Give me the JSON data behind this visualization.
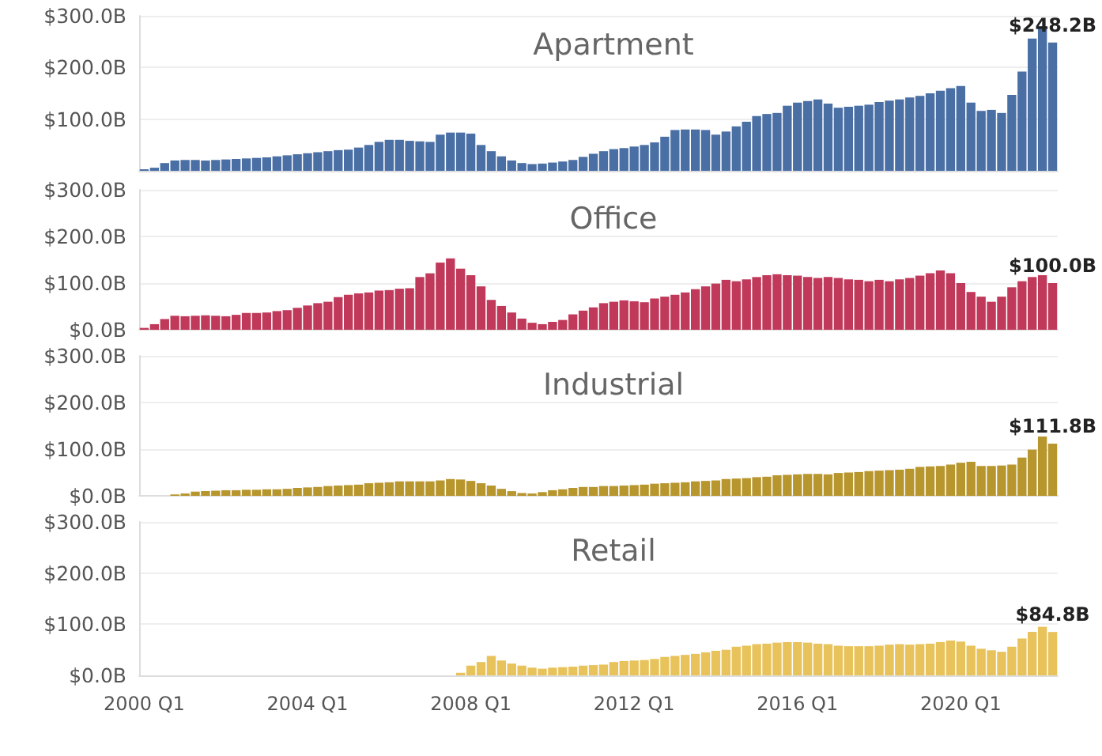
{
  "chart_data": [
    {
      "type": "bar",
      "title": "Apartment",
      "color": "#4a6fa5",
      "grid": "y",
      "tick_labels": "y",
      "values": [
        3,
        6,
        15,
        20,
        21,
        21,
        20,
        21,
        22,
        23,
        24,
        25,
        26,
        28,
        30,
        32,
        34,
        36,
        38,
        40,
        41,
        45,
        50,
        56,
        60,
        60,
        58,
        57,
        56,
        70,
        74,
        74,
        72,
        50,
        38,
        28,
        20,
        15,
        13,
        14,
        16,
        18,
        21,
        27,
        33,
        38,
        42,
        44,
        47,
        50,
        55,
        66,
        79,
        80,
        80,
        79,
        70,
        76,
        86,
        95,
        106,
        110,
        112,
        126,
        132,
        135,
        138,
        130,
        122,
        124,
        126,
        128,
        133,
        136,
        138,
        142,
        145,
        150,
        155,
        160,
        164,
        132,
        116,
        118,
        112,
        147,
        192,
        256,
        280,
        248.2
      ],
      "value_labels": [
        null,
        null,
        null,
        null,
        null,
        null,
        null,
        null,
        null,
        null,
        null,
        null,
        null,
        null,
        null,
        null,
        null,
        null,
        null,
        null,
        null,
        null,
        null,
        null,
        null,
        null,
        null,
        null,
        null,
        null,
        null,
        null,
        null,
        null,
        null,
        null,
        null,
        null,
        null,
        null,
        null,
        null,
        null,
        null,
        null,
        null,
        null,
        null,
        null,
        null,
        null,
        null,
        null,
        null,
        null,
        null,
        null,
        null,
        null,
        null,
        null,
        null,
        null,
        null,
        null,
        null,
        null,
        null,
        null,
        null,
        null,
        null,
        null,
        null,
        null,
        null,
        null,
        null,
        null,
        null,
        null,
        null,
        null,
        null,
        null,
        null,
        null,
        null,
        null,
        "$248.2B"
      ],
      "ylim": [
        0,
        300
      ],
      "yticks": [
        {
          "value": 100,
          "label": "$100.0B"
        },
        {
          "value": 200,
          "label": "$200.0B"
        },
        {
          "value": 300,
          "label": "$300.0B"
        }
      ]
    },
    {
      "type": "bar",
      "title": "Office",
      "color": "#c0395a",
      "grid": "y",
      "tick_labels": "y",
      "values": [
        4,
        12,
        23,
        30,
        29,
        30,
        31,
        30,
        29,
        32,
        36,
        36,
        37,
        40,
        42,
        47,
        52,
        57,
        60,
        70,
        75,
        78,
        80,
        84,
        85,
        88,
        89,
        113,
        121,
        144,
        153,
        131,
        117,
        93,
        64,
        51,
        37,
        24,
        15,
        12,
        17,
        21,
        33,
        41,
        48,
        57,
        60,
        63,
        61,
        59,
        67,
        71,
        75,
        80,
        87,
        93,
        99,
        107,
        104,
        108,
        113,
        117,
        119,
        117,
        116,
        113,
        111,
        113,
        111,
        108,
        107,
        104,
        107,
        104,
        108,
        111,
        116,
        121,
        127,
        121,
        100,
        81,
        71,
        60,
        71,
        91,
        104,
        113,
        117,
        100.0
      ],
      "value_labels": [
        null,
        null,
        null,
        null,
        null,
        null,
        null,
        null,
        null,
        null,
        null,
        null,
        null,
        null,
        null,
        null,
        null,
        null,
        null,
        null,
        null,
        null,
        null,
        null,
        null,
        null,
        null,
        null,
        null,
        null,
        null,
        null,
        null,
        null,
        null,
        null,
        null,
        null,
        null,
        null,
        null,
        null,
        null,
        null,
        null,
        null,
        null,
        null,
        null,
        null,
        null,
        null,
        null,
        null,
        null,
        null,
        null,
        null,
        null,
        null,
        null,
        null,
        null,
        null,
        null,
        null,
        null,
        null,
        null,
        null,
        null,
        null,
        null,
        null,
        null,
        null,
        null,
        null,
        null,
        null,
        null,
        null,
        null,
        null,
        null,
        null,
        null,
        null,
        null,
        "$100.0B"
      ],
      "ylim": [
        0,
        300
      ],
      "yticks": [
        {
          "value": 0,
          "label": "$0.0B"
        },
        {
          "value": 100,
          "label": "$100.0B"
        },
        {
          "value": 200,
          "label": "$200.0B"
        },
        {
          "value": 300,
          "label": "$300.0B"
        }
      ]
    },
    {
      "type": "bar",
      "title": "Industrial",
      "color": "#b8962e",
      "grid": "y",
      "tick_labels": "y",
      "values": [
        null,
        null,
        null,
        3,
        5,
        9,
        10,
        11,
        12,
        12,
        13,
        13,
        14,
        14,
        15,
        17,
        18,
        19,
        21,
        22,
        23,
        24,
        27,
        28,
        29,
        31,
        31,
        31,
        31,
        33,
        36,
        35,
        32,
        27,
        22,
        15,
        10,
        6,
        5,
        8,
        12,
        14,
        17,
        19,
        19,
        21,
        21,
        22,
        23,
        24,
        26,
        27,
        28,
        29,
        31,
        32,
        33,
        36,
        37,
        38,
        40,
        41,
        44,
        45,
        46,
        47,
        47,
        46,
        49,
        50,
        51,
        53,
        54,
        55,
        56,
        58,
        62,
        63,
        64,
        67,
        71,
        73,
        64,
        64,
        65,
        67,
        82,
        99,
        127,
        111.8
      ],
      "value_labels": [
        null,
        null,
        null,
        null,
        null,
        null,
        null,
        null,
        null,
        null,
        null,
        null,
        null,
        null,
        null,
        null,
        null,
        null,
        null,
        null,
        null,
        null,
        null,
        null,
        null,
        null,
        null,
        null,
        null,
        null,
        null,
        null,
        null,
        null,
        null,
        null,
        null,
        null,
        null,
        null,
        null,
        null,
        null,
        null,
        null,
        null,
        null,
        null,
        null,
        null,
        null,
        null,
        null,
        null,
        null,
        null,
        null,
        null,
        null,
        null,
        null,
        null,
        null,
        null,
        null,
        null,
        null,
        null,
        null,
        null,
        null,
        null,
        null,
        null,
        null,
        null,
        null,
        null,
        null,
        null,
        null,
        null,
        null,
        null,
        null,
        null,
        null,
        null,
        null,
        "$111.8B"
      ],
      "ylim": [
        0,
        300
      ],
      "yticks": [
        {
          "value": 0,
          "label": "$0.0B"
        },
        {
          "value": 100,
          "label": "$100.0B"
        },
        {
          "value": 200,
          "label": "$200.0B"
        },
        {
          "value": 300,
          "label": "$300.0B"
        }
      ]
    },
    {
      "type": "bar",
      "title": "Retail",
      "color": "#e8c25a",
      "grid": "y",
      "categories": [
        "2000 Q1",
        null,
        null,
        null,
        null,
        null,
        null,
        null,
        null,
        null,
        null,
        null,
        null,
        null,
        null,
        null,
        "2004 Q1",
        null,
        null,
        null,
        null,
        null,
        null,
        null,
        null,
        null,
        null,
        null,
        null,
        null,
        null,
        null,
        "2008 Q1",
        null,
        null,
        null,
        null,
        null,
        null,
        null,
        null,
        null,
        null,
        null,
        null,
        null,
        null,
        null,
        "2012 Q1",
        null,
        null,
        null,
        null,
        null,
        null,
        null,
        null,
        null,
        null,
        null,
        null,
        null,
        null,
        null,
        "2016 Q1",
        null,
        null,
        null,
        null,
        null,
        null,
        null,
        null,
        null,
        null,
        null,
        null,
        null,
        null,
        null,
        "2020 Q1",
        null,
        null,
        null,
        null,
        null,
        null,
        null,
        null,
        null
      ],
      "values": [
        null,
        null,
        null,
        null,
        null,
        null,
        null,
        null,
        null,
        null,
        null,
        null,
        null,
        null,
        null,
        null,
        null,
        null,
        null,
        null,
        null,
        null,
        null,
        null,
        null,
        null,
        null,
        null,
        null,
        null,
        null,
        5,
        19,
        26,
        38,
        29,
        23,
        19,
        15,
        13,
        15,
        16,
        17,
        19,
        20,
        21,
        26,
        28,
        29,
        30,
        32,
        36,
        38,
        40,
        42,
        45,
        48,
        50,
        56,
        58,
        61,
        62,
        64,
        65,
        65,
        64,
        62,
        61,
        58,
        57,
        57,
        57,
        58,
        60,
        61,
        60,
        61,
        62,
        65,
        68,
        66,
        58,
        52,
        49,
        46,
        56,
        72,
        85,
        95,
        84.8
      ],
      "value_labels": [
        null,
        null,
        null,
        null,
        null,
        null,
        null,
        null,
        null,
        null,
        null,
        null,
        null,
        null,
        null,
        null,
        null,
        null,
        null,
        null,
        null,
        null,
        null,
        null,
        null,
        null,
        null,
        null,
        null,
        null,
        null,
        null,
        null,
        null,
        null,
        null,
        null,
        null,
        null,
        null,
        null,
        null,
        null,
        null,
        null,
        null,
        null,
        null,
        null,
        null,
        null,
        null,
        null,
        null,
        null,
        null,
        null,
        null,
        null,
        null,
        null,
        null,
        null,
        null,
        null,
        null,
        null,
        null,
        null,
        null,
        null,
        null,
        null,
        null,
        null,
        null,
        null,
        null,
        null,
        null,
        null,
        null,
        null,
        null,
        null,
        null,
        null,
        null,
        null,
        "$84.8B"
      ],
      "ylim": [
        0,
        300
      ],
      "yticks": [
        {
          "value": 0,
          "label": "$0.0B"
        },
        {
          "value": 100,
          "label": "$100.0B"
        },
        {
          "value": 200,
          "label": "$200.0B"
        },
        {
          "value": 300,
          "label": "$300.0B"
        }
      ]
    }
  ]
}
